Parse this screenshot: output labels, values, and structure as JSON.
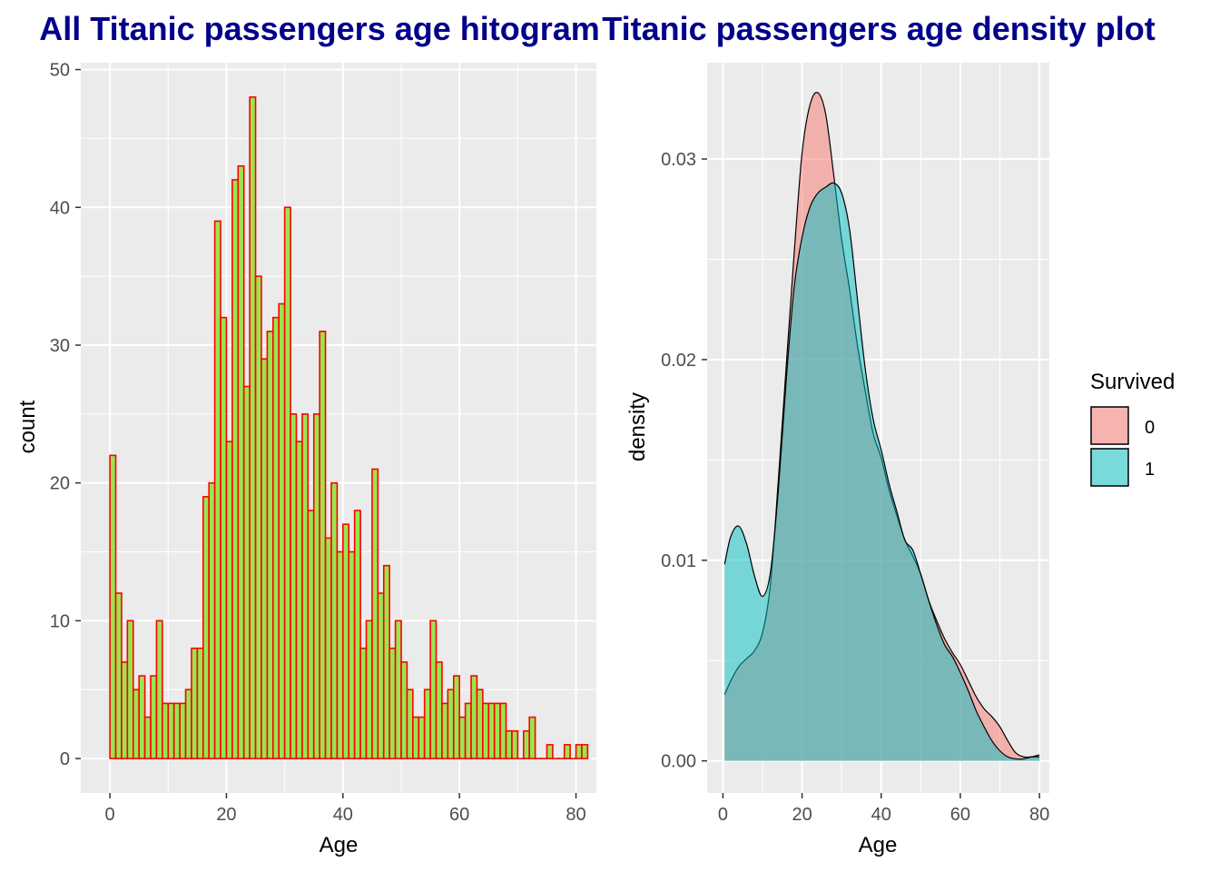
{
  "chart_data": [
    {
      "type": "bar",
      "title": "All Titanic passengers age hitogram",
      "xlabel": "Age",
      "ylabel": "count",
      "xlim": [
        -5,
        83.5
      ],
      "ylim": [
        -2.5,
        50.5
      ],
      "xticks": [
        "0",
        "20",
        "40",
        "60",
        "80"
      ],
      "yticks": [
        "0",
        "10",
        "20",
        "30",
        "40",
        "50"
      ],
      "grid": true,
      "fill_color": "#99E550",
      "edge_color": "#FF0000",
      "bin_width": 1,
      "bins_start": 0,
      "values": [
        22,
        12,
        7,
        10,
        5,
        6,
        3,
        6,
        10,
        4,
        4,
        4,
        4,
        5,
        8,
        8,
        19,
        20,
        39,
        32,
        23,
        42,
        43,
        27,
        48,
        35,
        29,
        31,
        32,
        33,
        40,
        25,
        23,
        25,
        18,
        25,
        31,
        16,
        20,
        15,
        17,
        15,
        18,
        8,
        10,
        21,
        12,
        14,
        8,
        10,
        7,
        5,
        3,
        3,
        5,
        10,
        7,
        4,
        5,
        6,
        3,
        4,
        6,
        5,
        4,
        4,
        4,
        4,
        2,
        2,
        0,
        2,
        3,
        0,
        0,
        1,
        0,
        0,
        1,
        0,
        1,
        1
      ]
    },
    {
      "type": "area",
      "title": "Titanic passengers age density plot",
      "xlabel": "Age",
      "ylabel": "density",
      "xlim": [
        -4,
        82.5
      ],
      "ylim": [
        -0.0016,
        0.0348
      ],
      "xticks": [
        "0",
        "20",
        "40",
        "60",
        "80"
      ],
      "yticks": [
        "0.00",
        "0.01",
        "0.02",
        "0.03"
      ],
      "grid": true,
      "legend": {
        "title": "Survived",
        "placement": "right"
      },
      "x": [
        0.42,
        2,
        4,
        6,
        8,
        10,
        12,
        14,
        16,
        18,
        20,
        22,
        24,
        26,
        28,
        30,
        32,
        34,
        36,
        38,
        40,
        42,
        44,
        46,
        48,
        50,
        52,
        54,
        56,
        58,
        60,
        62,
        64,
        66,
        68,
        70,
        72,
        74,
        76,
        78,
        80
      ],
      "series": [
        {
          "name": "0",
          "color": "#F8766D",
          "values": [
            0.0033,
            0.004,
            0.0047,
            0.0051,
            0.0055,
            0.0064,
            0.0088,
            0.014,
            0.0197,
            0.0253,
            0.0303,
            0.0327,
            0.0333,
            0.0322,
            0.0292,
            0.026,
            0.0235,
            0.0207,
            0.0184,
            0.0163,
            0.0151,
            0.0135,
            0.0122,
            0.011,
            0.0102,
            0.0093,
            0.008,
            0.007,
            0.0061,
            0.0054,
            0.0048,
            0.004,
            0.0032,
            0.0026,
            0.0022,
            0.0017,
            0.001,
            0.0004,
            0.0002,
            0.0002,
            0.0003
          ]
        },
        {
          "name": "1",
          "color": "#00BFC4",
          "values": [
            0.0098,
            0.0112,
            0.0117,
            0.0108,
            0.0092,
            0.0082,
            0.0094,
            0.0135,
            0.019,
            0.0236,
            0.0261,
            0.0276,
            0.0283,
            0.0286,
            0.0288,
            0.0283,
            0.0265,
            0.023,
            0.0195,
            0.017,
            0.0155,
            0.0138,
            0.0124,
            0.011,
            0.0105,
            0.0093,
            0.008,
            0.0068,
            0.0058,
            0.0052,
            0.0044,
            0.0035,
            0.0025,
            0.0017,
            0.001,
            0.0005,
            0.0002,
            0.0001,
            0.0001,
            0.0002,
            0.0002
          ]
        }
      ]
    }
  ]
}
